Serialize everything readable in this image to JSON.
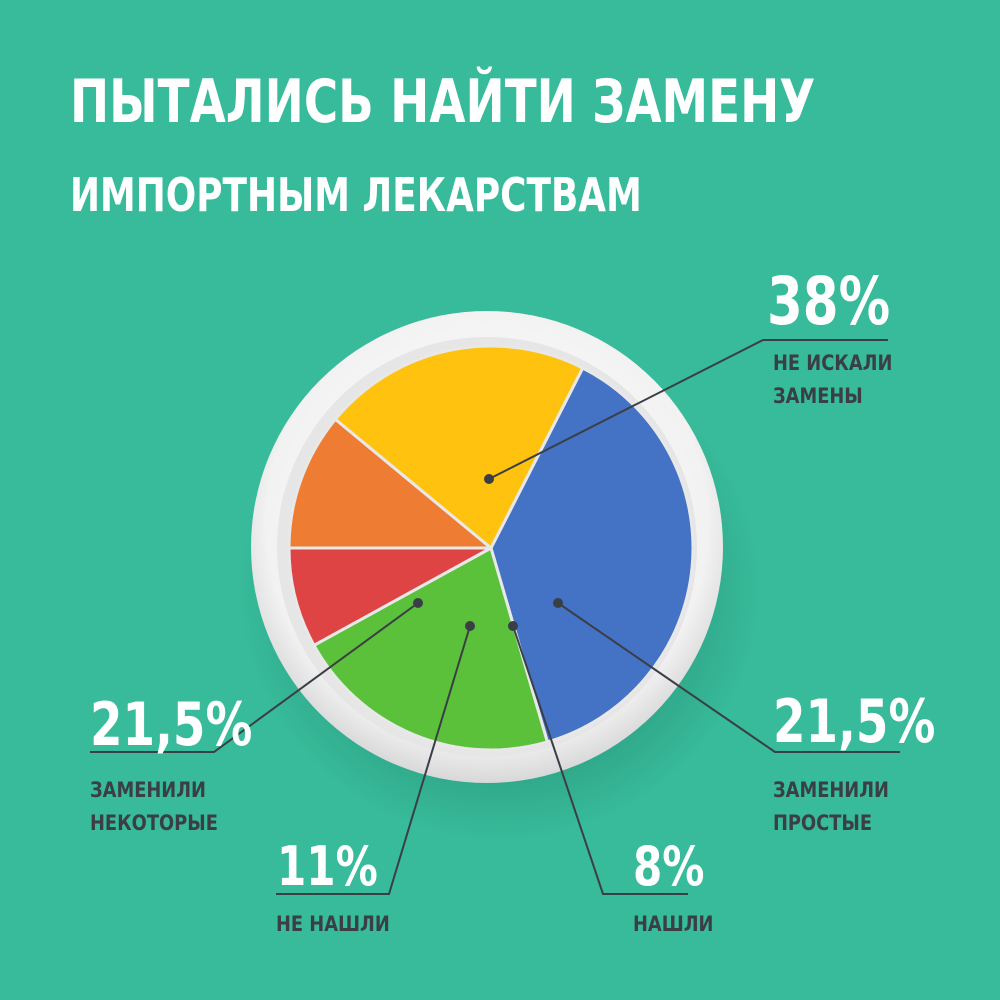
{
  "title_line1": "ПЫТАЛИСЬ НАЙТИ ЗАМЕНУ",
  "title_line2": "ИМПОРТНЫМ ЛЕКАРСТВАМ",
  "chart_data": {
    "type": "pie",
    "title": "ПЫТАЛИСЬ НАЙТИ ЗАМЕНУ ИМПОРТНЫМ ЛЕКАРСТВАМ",
    "slices": [
      {
        "id": "ne-iskali",
        "value": 38,
        "label_pct": "38%",
        "label_lines": [
          "НЕ ИСКАЛИ",
          "ЗАМЕНЫ"
        ],
        "color": "#4472c4"
      },
      {
        "id": "zamenili-prostye",
        "value": 21.5,
        "label_pct": "21,5%",
        "label_lines": [
          "ЗАМЕНИЛИ",
          "ПРОСТЫЕ"
        ],
        "color": "#5cc13a"
      },
      {
        "id": "nashli",
        "value": 8,
        "label_pct": "8%",
        "label_lines": [
          "НАШЛИ"
        ],
        "color": "#df4444"
      },
      {
        "id": "ne-nashli",
        "value": 11,
        "label_pct": "11%",
        "label_lines": [
          "НЕ НАШЛИ"
        ],
        "color": "#ee7d33"
      },
      {
        "id": "zamenili-nekotorye",
        "value": 21.5,
        "label_pct": "21,5%",
        "label_lines": [
          "ЗАМЕНИЛИ",
          "НЕКОТОРЫЕ"
        ],
        "color": "#ffc20e"
      }
    ]
  },
  "colors": {
    "background": "#37bb9a",
    "plate": "#eeeeee",
    "leader_line": "#3a3f45",
    "label_text": "#3a3f45",
    "percent_text": "#ffffff"
  }
}
